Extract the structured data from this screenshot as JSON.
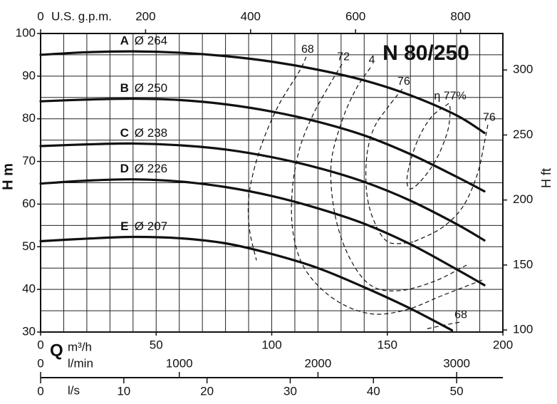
{
  "chart_data": {
    "type": "line",
    "title": "N 80/250",
    "xlim": [
      0,
      200
    ],
    "xticks": [
      0,
      50,
      100,
      150,
      200
    ],
    "ylim": [
      30,
      100
    ],
    "yticks": [
      30,
      40,
      50,
      60,
      70,
      80,
      90,
      100
    ],
    "xgrid": [
      0,
      10,
      20,
      30,
      40,
      50,
      60,
      70,
      80,
      90,
      100,
      110,
      120,
      130,
      140,
      150,
      160,
      170,
      180,
      190,
      200
    ],
    "ygrid": [
      30,
      35,
      40,
      45,
      50,
      55,
      60,
      65,
      70,
      75,
      80,
      85,
      90,
      95,
      100
    ],
    "grid": true,
    "q_label": "Q",
    "xlabel": "m³/h",
    "ylabel": "H m",
    "y2label": "H ft",
    "y2lim": [
      98.43,
      328.08
    ],
    "y2ticks": [
      100,
      150,
      200,
      250,
      300
    ],
    "top_axis": {
      "label": "U.S. g.p.m.",
      "lim": [
        0,
        880.6
      ],
      "ticks": [
        0,
        200,
        400,
        600,
        800
      ]
    },
    "lmin_axis": {
      "label": "l/min",
      "lim": [
        0,
        3333.3
      ],
      "ticks": [
        0,
        1000,
        2000,
        3000
      ]
    },
    "ls_axis": {
      "label": "l/s",
      "lim": [
        0,
        55.556
      ],
      "ticks": [
        0,
        10,
        20,
        30,
        40,
        50
      ]
    },
    "color": "#111111",
    "series": [
      {
        "name": "A",
        "diameter": "Ø 264",
        "x": [
          0,
          20,
          40,
          60,
          80,
          100,
          120,
          140,
          160,
          180,
          192
        ],
        "values": [
          95,
          95.6,
          95.8,
          95.5,
          94.7,
          93.4,
          91.5,
          89,
          85.5,
          80.8,
          76.7
        ]
      },
      {
        "name": "B",
        "diameter": "Ø 250",
        "x": [
          0,
          20,
          40,
          60,
          80,
          100,
          120,
          140,
          160,
          180,
          192
        ],
        "values": [
          84.1,
          84.5,
          84.7,
          84.4,
          83.4,
          81.7,
          79.3,
          76.1,
          71.7,
          66.4,
          63
        ]
      },
      {
        "name": "C",
        "diameter": "Ø 238",
        "x": [
          0,
          20,
          40,
          60,
          80,
          100,
          120,
          140,
          160,
          180,
          192
        ],
        "values": [
          73.6,
          74,
          74.2,
          73.8,
          72.8,
          71,
          68.5,
          65.2,
          60.8,
          55.3,
          51.5
        ]
      },
      {
        "name": "D",
        "diameter": "Ø 226",
        "x": [
          0,
          20,
          40,
          60,
          80,
          100,
          120,
          140,
          160,
          180,
          192
        ],
        "values": [
          64.8,
          65.5,
          65.8,
          65.3,
          64,
          61.9,
          59,
          55.4,
          50.6,
          44.7,
          41
        ]
      },
      {
        "name": "E",
        "diameter": "Ø 207",
        "x": [
          0,
          20,
          40,
          60,
          80,
          100,
          120,
          140,
          160,
          178
        ],
        "values": [
          51.3,
          51.9,
          52.3,
          52,
          50.8,
          48.3,
          45,
          40.5,
          35.5,
          30.4
        ]
      }
    ],
    "efficiency": [
      {
        "name": "68",
        "x": [
          114.9,
          111.9,
          102.6,
          94.9,
          90.3,
          90.3,
          93.4
        ],
        "values": [
          94.5,
          91.1,
          82.8,
          72.8,
          62.7,
          54.4,
          46.8
        ]
      },
      {
        "name": "72",
        "x": [
          130.4,
          125.7,
          118.0,
          111.9,
          108.8,
          109.4,
          114.9,
          127.3,
          142.7,
          158.1,
          173.5,
          192.0
        ],
        "values": [
          92.8,
          88.6,
          81.1,
          72.7,
          62.7,
          52.7,
          44.3,
          37.6,
          34.3,
          35.2,
          38.5,
          42.4
        ]
      },
      {
        "name": "4",
        "x": [
          142.7,
          136.5,
          130.4,
          125.7,
          127.3,
          133.4,
          142.7,
          155.0,
          170.4,
          184.3
        ],
        "values": [
          92.0,
          87.0,
          79.5,
          69.4,
          57.7,
          47.7,
          41.0,
          39.7,
          41.9,
          45.7
        ]
      },
      {
        "name": "76",
        "x": [
          156.5,
          150.4,
          144.2,
          141.1,
          141.1,
          144.2,
          150.4,
          161.2
        ],
        "values": [
          87.0,
          82.8,
          77.8,
          71.1,
          62.7,
          56.1,
          51.1,
          51.1
        ]
      },
      {
        "name": "η 77%",
        "x": [
          176.6,
          168.9,
          162.7,
          158.7,
          159.6,
          164.3,
          171.0,
          176.0,
          177.2,
          176.6
        ],
        "values": [
          83.6,
          80.3,
          74.4,
          66.9,
          63.6,
          65.3,
          70.3,
          76.9,
          82.0,
          83.6
        ]
      },
      {
        "name": "76",
        "x": [
          193.5,
          192.0,
          188.9,
          182.7,
          173.5,
          161.2
        ],
        "values": [
          78.6,
          74.4,
          66.9,
          59.4,
          54.4,
          51.1
        ]
      },
      {
        "name": "68",
        "x": [
          181.2,
          173.5,
          166.7
        ],
        "values": [
          32.3,
          31.5,
          30.7
        ]
      }
    ]
  }
}
